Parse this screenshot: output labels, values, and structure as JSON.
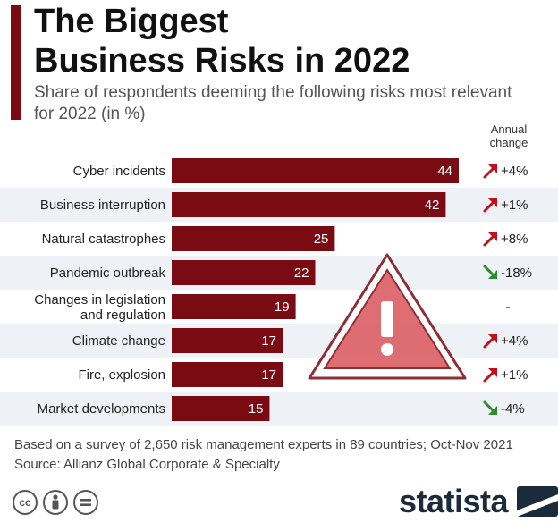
{
  "header": {
    "title_line1": "The Biggest",
    "title_line2": "Business Risks in 2022",
    "subtitle": "Share of respondents deeming the following risks most relevant for 2022 (in %)",
    "annual_change_header": "Annual change"
  },
  "colors": {
    "bar": "#7a0b13",
    "row_band": "#eef2f6",
    "accent": "#7a0b13",
    "up_arrow": "#c0101a",
    "down_arrow": "#2e8b2e",
    "warning_fill": "#d9545c"
  },
  "chart_data": {
    "type": "bar",
    "orientation": "horizontal",
    "categories": [
      "Cyber incidents",
      "Business interruption",
      "Natural catastrophes",
      "Pandemic outbreak",
      "Changes in legislation and regulation",
      "Climate change",
      "Fire, explosion",
      "Market developments"
    ],
    "values": [
      44,
      42,
      25,
      22,
      19,
      17,
      17,
      15
    ],
    "annual_change": [
      "+4%",
      "+1%",
      "+8%",
      "-18%",
      "-",
      "+4%",
      "+1%",
      "-4%"
    ],
    "change_direction": [
      "up",
      "up",
      "up",
      "down",
      "none",
      "up",
      "up",
      "down"
    ],
    "xlim": [
      0,
      44
    ],
    "grid": false,
    "title": "The Biggest Business Risks in 2022",
    "subtitle": "Share of respondents deeming the following risks most relevant for 2022 (in %)"
  },
  "footer": {
    "note": "Based on a survey of 2,650 risk management experts in 89 countries; Oct-Nov 2021",
    "source": "Source: Allianz Global Corporate & Specialty",
    "brand": "statista",
    "license_icons": [
      "creative-commons-icon",
      "attribution-icon",
      "no-derivatives-icon"
    ]
  }
}
